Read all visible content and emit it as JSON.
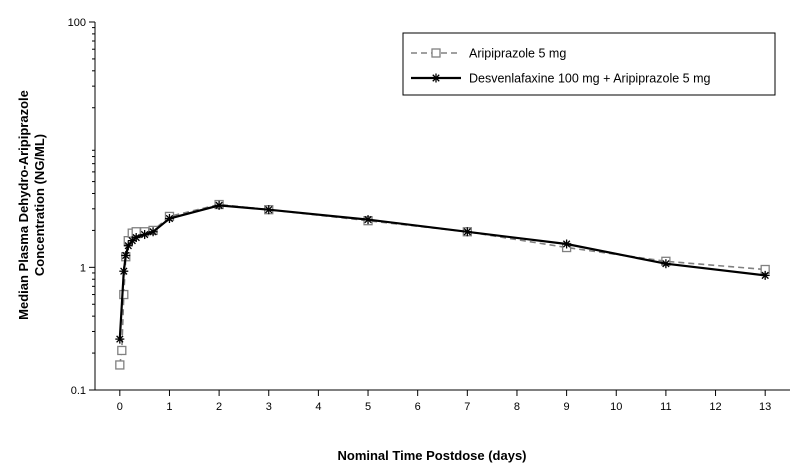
{
  "chart_data": {
    "type": "line",
    "title": "",
    "xlabel": "Nominal Time Postdose (days)",
    "ylabel_line1": "Median Plasma Dehydro-Aripiprazole",
    "ylabel_line2": "Concentration (NG/ML)",
    "yscale": "log",
    "xlim": [
      -0.5,
      13.5
    ],
    "ylim": [
      0.1,
      100
    ],
    "x_ticks": [
      0,
      1,
      2,
      3,
      4,
      5,
      6,
      7,
      8,
      9,
      10,
      11,
      12,
      13
    ],
    "y_ticks": [
      0.1,
      1,
      100
    ],
    "y_tick_labels": [
      "0.1",
      "1",
      "100"
    ],
    "grid": false,
    "legend_position": "top-right",
    "series": [
      {
        "name": "Aripiprazole 5 mg",
        "color": "#808080",
        "line_style": "dashed",
        "marker": "square",
        "x": [
          0,
          0.04,
          0.08,
          0.12,
          0.17,
          0.25,
          0.33,
          0.5,
          0.67,
          1,
          2,
          3,
          5,
          7,
          9,
          11,
          13
        ],
        "y": [
          0.16,
          0.21,
          0.6,
          1.22,
          1.65,
          1.9,
          1.95,
          1.95,
          2.0,
          2.6,
          3.25,
          2.95,
          2.4,
          1.95,
          1.45,
          1.12,
          0.96
        ]
      },
      {
        "name": "Desvenlafaxine 100 mg + Aripiprazole 5 mg",
        "color": "#000000",
        "line_style": "solid",
        "marker": "asterisk",
        "x": [
          0,
          0.08,
          0.12,
          0.17,
          0.25,
          0.33,
          0.5,
          0.67,
          1,
          2,
          3,
          5,
          7,
          9,
          11,
          13
        ],
        "y": [
          0.26,
          0.93,
          1.25,
          1.5,
          1.65,
          1.75,
          1.85,
          1.95,
          2.5,
          3.2,
          2.95,
          2.45,
          1.95,
          1.55,
          1.07,
          0.86
        ]
      }
    ]
  }
}
